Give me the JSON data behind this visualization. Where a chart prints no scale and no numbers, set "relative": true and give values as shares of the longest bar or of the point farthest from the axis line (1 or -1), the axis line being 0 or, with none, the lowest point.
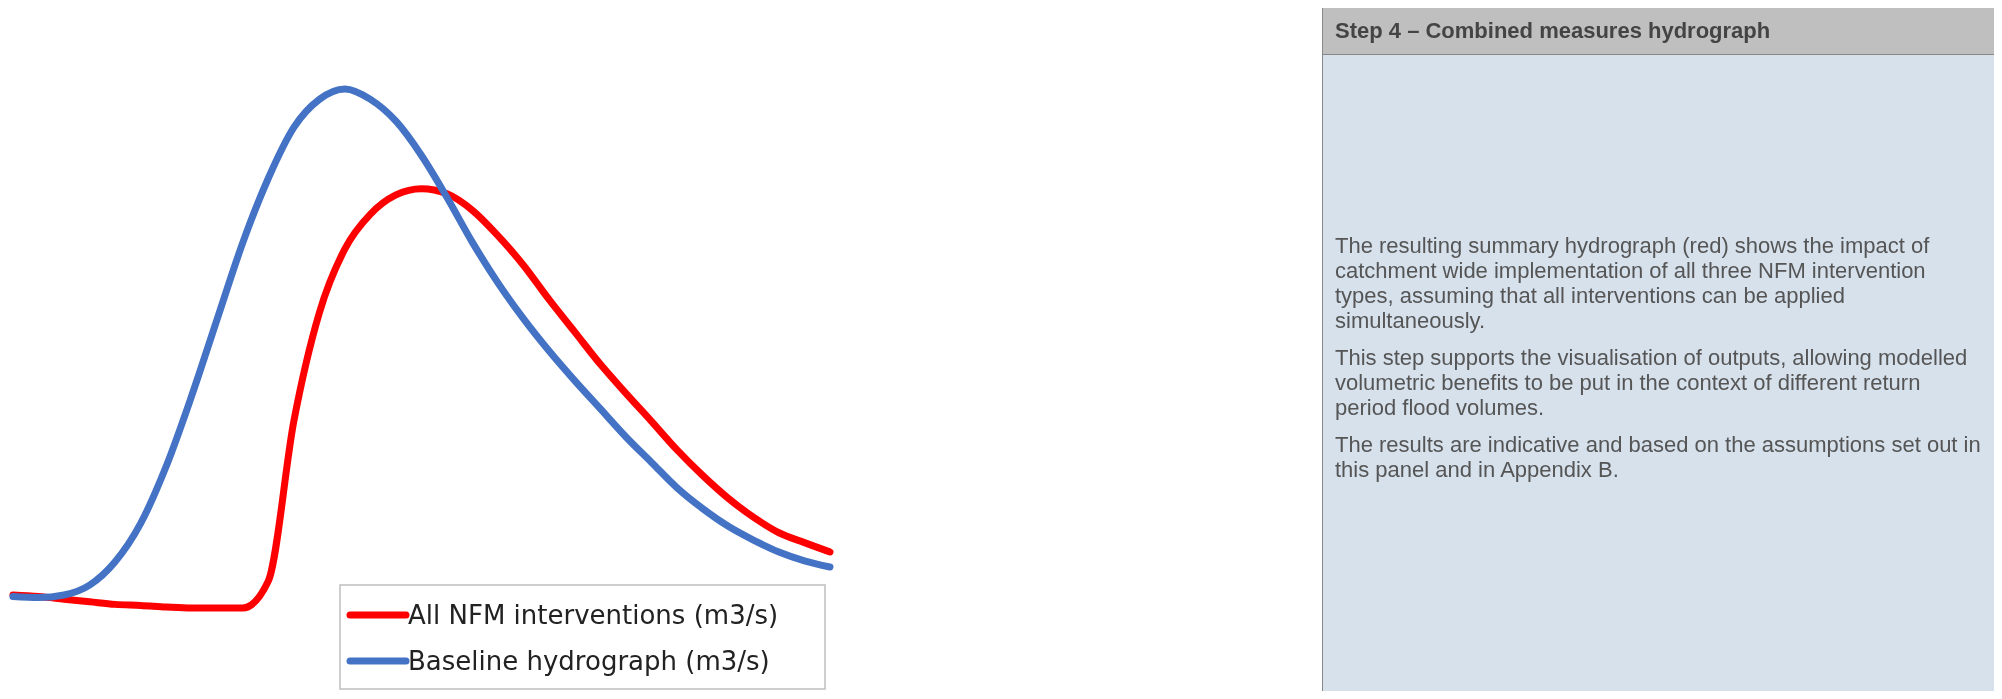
{
  "chart_data": {
    "type": "line",
    "relative": true,
    "title": "Step 4 – Combined measures hydrograph",
    "annotations": [
      "The resulting summary hydrograph (red) shows the impact of catchment wide implementation of all three NFM intervention types, assuming that all interventions can be applied simultaneously.",
      "This step supports the visualisation of outputs, allowing modelled volumetric benefits to be put in the context of different return period flood volumes.",
      "The results are indicative and based on the assumptions set out in this panel and in Appendix B."
    ],
    "categories": [
      null,
      null,
      null,
      null,
      null,
      null,
      null,
      null,
      null,
      null,
      null,
      null,
      null,
      null,
      null,
      null,
      null,
      null,
      null,
      null,
      null,
      null,
      null,
      null,
      null,
      null,
      null,
      null,
      null,
      null,
      null,
      null,
      null
    ],
    "legend": "bottom right",
    "series": [
      {
        "name": "All NFM interventions (m3/s)",
        "color": "#ff0000",
        "values": [
          0.025,
          0.022,
          0.017,
          0.012,
          0.007,
          0.005,
          0.002,
          0,
          0,
          0,
          0.052,
          0.36,
          0.569,
          0.692,
          0.759,
          0.796,
          0.808,
          0.798,
          0.766,
          0.717,
          0.66,
          0.594,
          0.532,
          0.47,
          0.414,
          0.36,
          0.305,
          0.256,
          0.212,
          0.175,
          0.145,
          0.126,
          0.108
        ]
      },
      {
        "name": "Baseline hydrograph (m3/s)",
        "color": "#4472c4",
        "values": [
          0.022,
          0.02,
          0.025,
          0.044,
          0.089,
          0.163,
          0.273,
          0.409,
          0.557,
          0.704,
          0.828,
          0.926,
          0.98,
          1,
          0.98,
          0.938,
          0.872,
          0.791,
          0.704,
          0.626,
          0.557,
          0.495,
          0.438,
          0.384,
          0.33,
          0.281,
          0.232,
          0.192,
          0.158,
          0.131,
          0.108,
          0.091,
          0.079
        ]
      }
    ]
  }
}
